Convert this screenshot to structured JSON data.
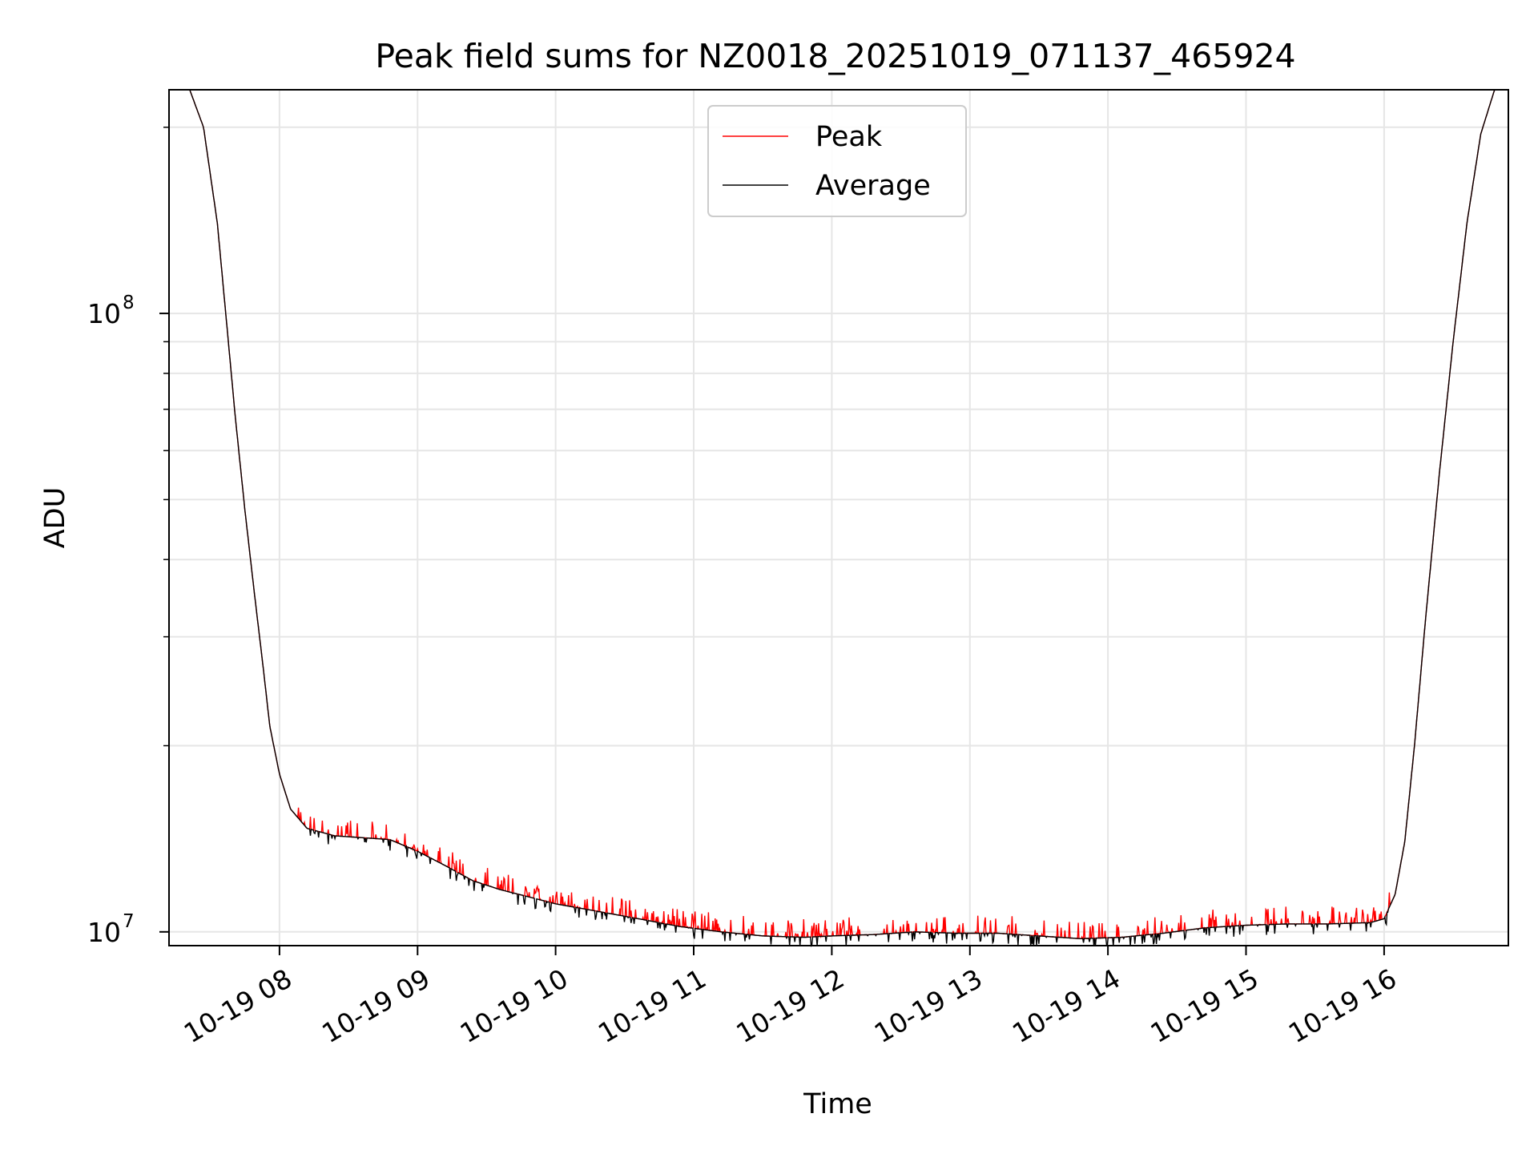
{
  "chart_data": {
    "type": "line",
    "title": "Peak field sums for NZ0018_20251019_071137_465924",
    "xlabel": "Time",
    "ylabel": "ADU",
    "yscale": "log",
    "ylim": [
      9500000,
      230000000
    ],
    "xlim": [
      7.2,
      16.9
    ],
    "grid": true,
    "legend_position": "top-center",
    "x_ticks": [
      {
        "value": 8,
        "label": "10-19 08"
      },
      {
        "value": 9,
        "label": "10-19 09"
      },
      {
        "value": 10,
        "label": "10-19 10"
      },
      {
        "value": 11,
        "label": "10-19 11"
      },
      {
        "value": 12,
        "label": "10-19 12"
      },
      {
        "value": 13,
        "label": "10-19 13"
      },
      {
        "value": 14,
        "label": "10-19 14"
      },
      {
        "value": 15,
        "label": "10-19 15"
      },
      {
        "value": 16,
        "label": "10-19 16"
      }
    ],
    "y_ticks": [
      {
        "value": 10000000,
        "base": "10",
        "exp": "7"
      },
      {
        "value": 100000000,
        "base": "10",
        "exp": "8"
      }
    ],
    "y_minor_ticks": [
      20000000,
      30000000,
      40000000,
      50000000,
      60000000,
      70000000,
      80000000,
      90000000,
      200000000
    ],
    "x_unit": "hour of day (2025-10-19)",
    "average_profile": [
      [
        7.2,
        230000000
      ],
      [
        7.35,
        230000000
      ],
      [
        7.45,
        200000000
      ],
      [
        7.55,
        140000000
      ],
      [
        7.62,
        95000000
      ],
      [
        7.68,
        68000000
      ],
      [
        7.75,
        48000000
      ],
      [
        7.82,
        35000000
      ],
      [
        7.88,
        27000000
      ],
      [
        7.93,
        21500000
      ],
      [
        8.0,
        18000000
      ],
      [
        8.08,
        15800000
      ],
      [
        8.2,
        14700000
      ],
      [
        8.4,
        14300000
      ],
      [
        8.6,
        14200000
      ],
      [
        8.8,
        14100000
      ],
      [
        9.0,
        13500000
      ],
      [
        9.2,
        12800000
      ],
      [
        9.4,
        12100000
      ],
      [
        9.6,
        11700000
      ],
      [
        9.8,
        11400000
      ],
      [
        10.0,
        11100000
      ],
      [
        10.3,
        10800000
      ],
      [
        10.6,
        10500000
      ],
      [
        10.9,
        10200000
      ],
      [
        11.2,
        10000000
      ],
      [
        11.5,
        9850000
      ],
      [
        11.8,
        9800000
      ],
      [
        12.0,
        9850000
      ],
      [
        12.3,
        9900000
      ],
      [
        12.6,
        10000000
      ],
      [
        12.9,
        9950000
      ],
      [
        13.2,
        9950000
      ],
      [
        13.5,
        9850000
      ],
      [
        13.8,
        9750000
      ],
      [
        14.1,
        9800000
      ],
      [
        14.4,
        9950000
      ],
      [
        14.7,
        10150000
      ],
      [
        15.0,
        10250000
      ],
      [
        15.3,
        10300000
      ],
      [
        15.6,
        10300000
      ],
      [
        15.9,
        10350000
      ],
      [
        16.0,
        10500000
      ],
      [
        16.08,
        11500000
      ],
      [
        16.15,
        14000000
      ],
      [
        16.22,
        20000000
      ],
      [
        16.3,
        32000000
      ],
      [
        16.4,
        55000000
      ],
      [
        16.5,
        90000000
      ],
      [
        16.6,
        140000000
      ],
      [
        16.7,
        195000000
      ],
      [
        16.8,
        230000000
      ],
      [
        16.9,
        230000000
      ]
    ],
    "peak_spike_amplitude": 0.07,
    "average_dip_amplitude": 0.04,
    "series": [
      {
        "name": "Peak",
        "color": "#ff0000"
      },
      {
        "name": "Average",
        "color": "#000000"
      }
    ]
  }
}
